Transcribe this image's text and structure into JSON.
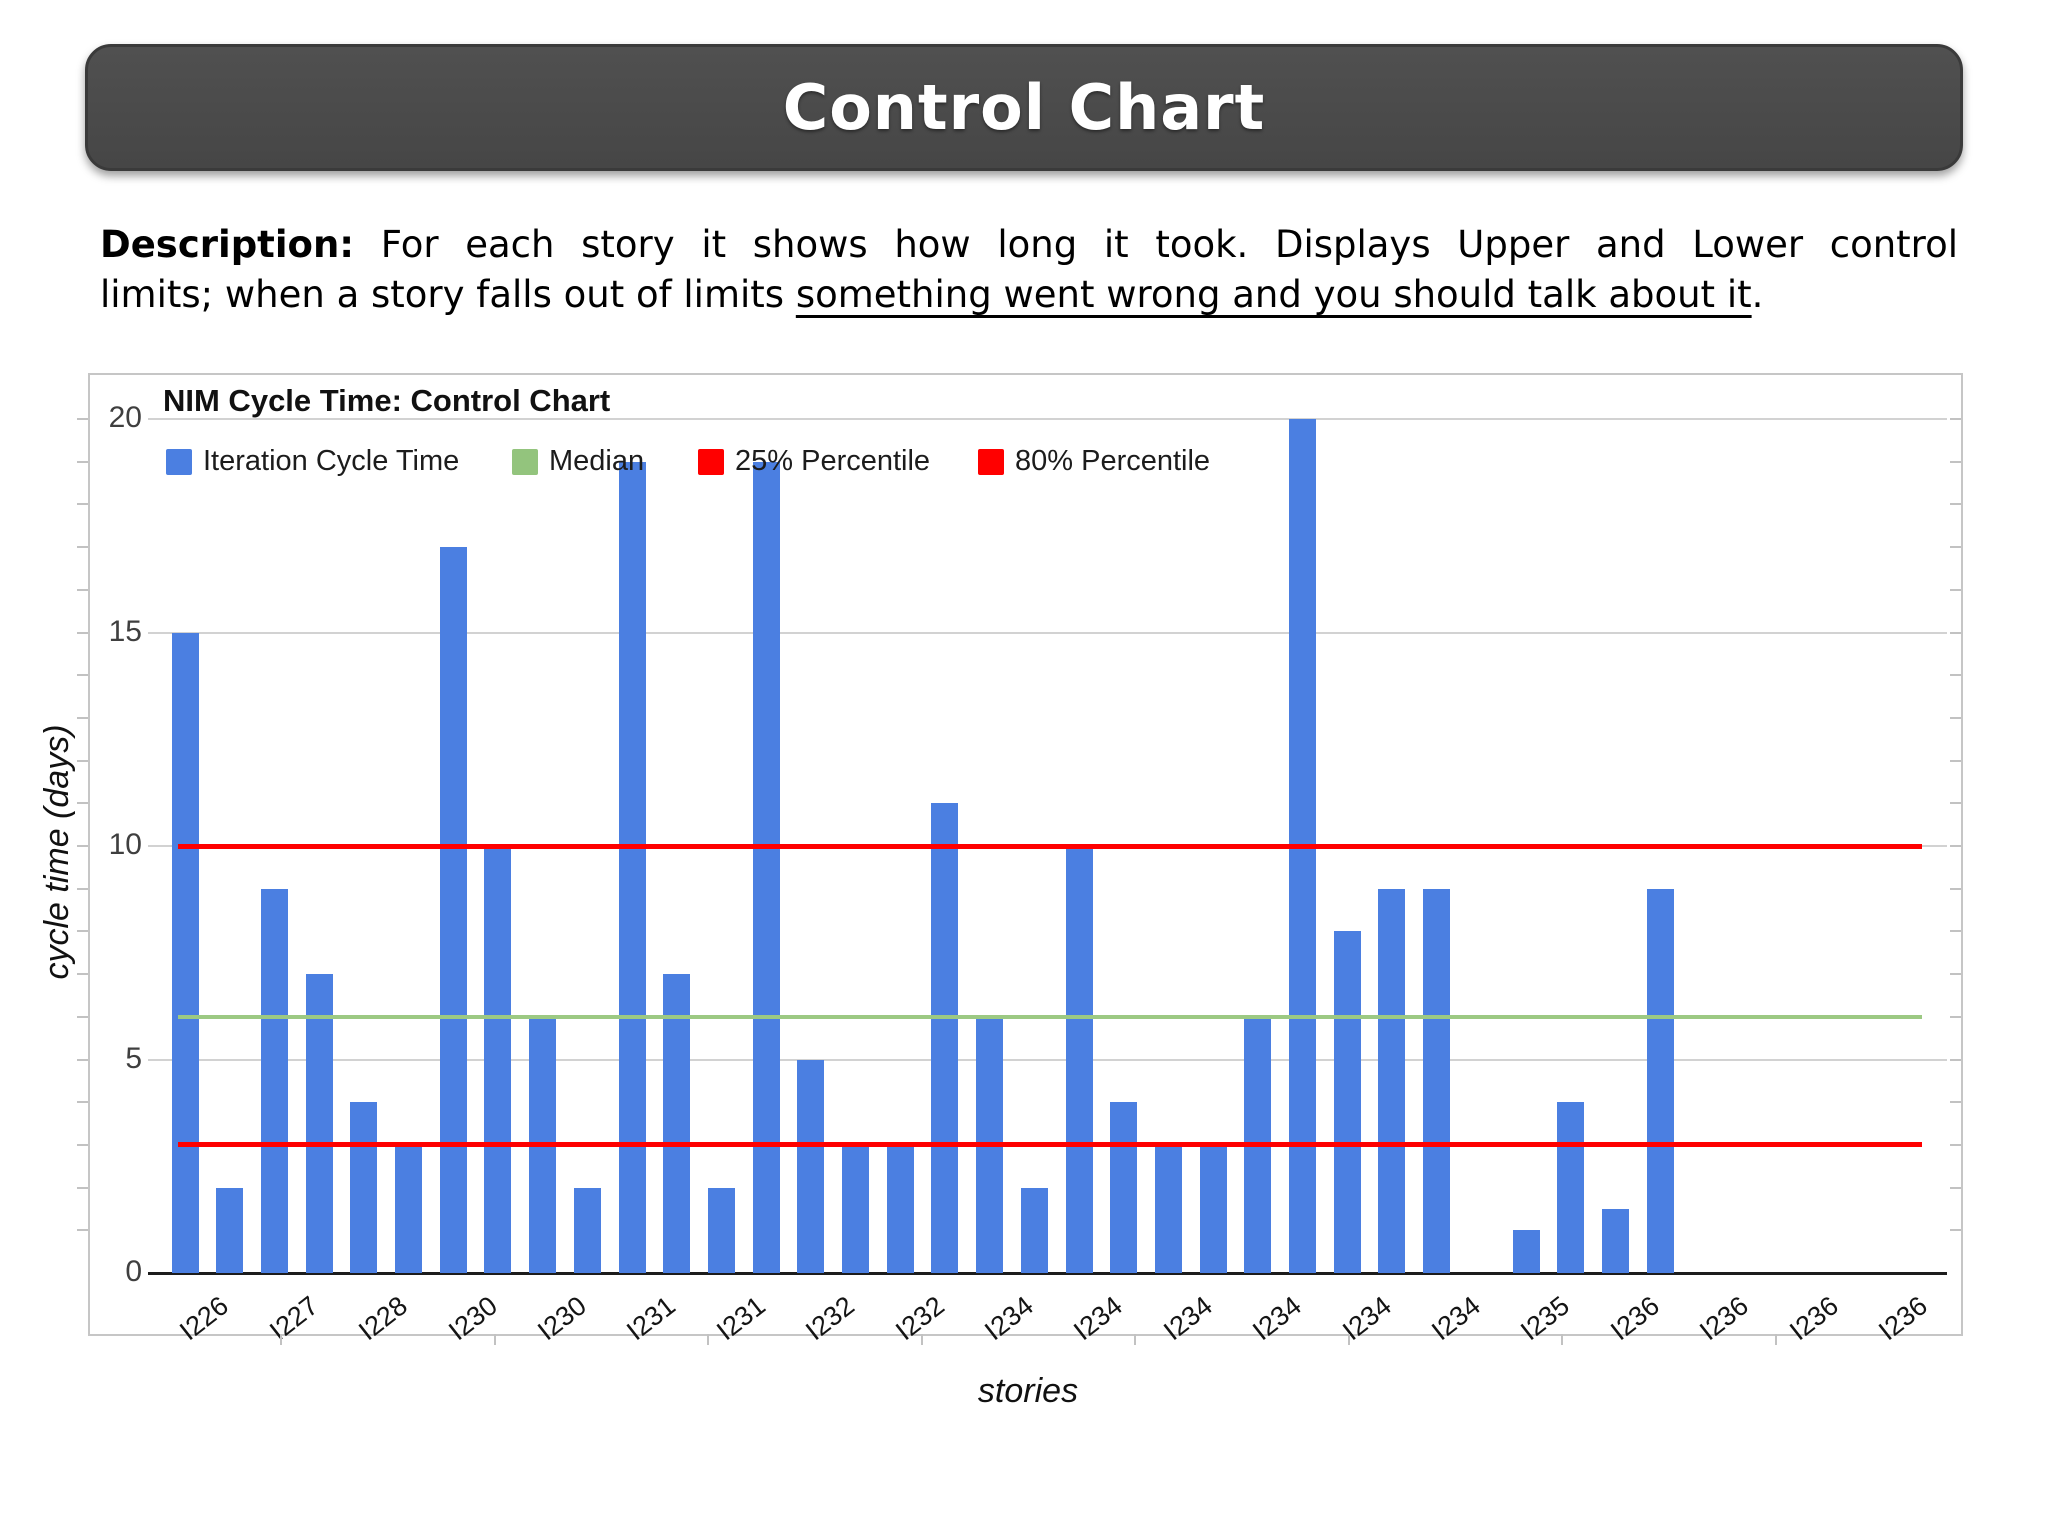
{
  "header": {
    "title": "Control Chart"
  },
  "description": {
    "label": "Description:",
    "line1_text": " For each story it shows how long it took. Displays Upper and Lower control",
    "line2_prefix": "limits; when a story falls out of limits ",
    "line2_underlined": "something went wrong and you should talk about it",
    "line2_suffix": "."
  },
  "chart_data": {
    "type": "bar",
    "title": "NIM Cycle Time: Control Chart",
    "xlabel": "stories",
    "ylabel": "cycle time (days)",
    "ylim": [
      0,
      20
    ],
    "yticks": [
      0,
      5,
      10,
      15,
      20
    ],
    "grid": true,
    "legend_position": "top-inside",
    "legend": [
      {
        "label": "Iteration Cycle Time",
        "color": "#4b7fe1"
      },
      {
        "label": "Median",
        "color": "#93c47d"
      },
      {
        "label": "25% Percentile",
        "color": "#ff0000"
      },
      {
        "label": "80% Percentile",
        "color": "#ff0000"
      }
    ],
    "categories": [
      "I226",
      "I227",
      "I228",
      "I230",
      "I230",
      "I231",
      "I231",
      "I232",
      "I232",
      "I234",
      "I234",
      "I234",
      "I234",
      "I234",
      "I234",
      "I235",
      "I236",
      "I236",
      "I236",
      "I236"
    ],
    "bars_per_category": 2,
    "values": [
      15,
      2,
      9,
      7,
      4,
      3,
      17,
      10,
      6,
      2,
      19,
      7,
      2,
      19,
      5,
      3,
      3,
      11,
      6,
      2,
      10,
      4,
      3,
      3,
      6,
      20,
      8,
      9,
      9,
      0,
      1,
      4,
      1.5,
      9,
      0,
      0,
      0,
      0,
      0,
      0
    ],
    "reference_lines": {
      "median": {
        "value": 6,
        "color": "#9cc983",
        "label": "Median"
      },
      "lower": {
        "value": 3,
        "color": "#ff0000",
        "label": "25% Percentile"
      },
      "upper": {
        "value": 10,
        "color": "#ff0000",
        "label": "80% Percentile"
      }
    },
    "colors": {
      "bar": "#4b7fe1",
      "gridline": "#d2d2d2",
      "axis": "#1c1c1c"
    }
  }
}
